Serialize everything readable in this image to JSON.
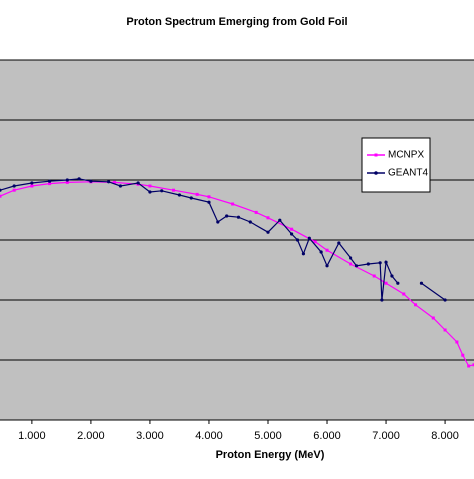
{
  "chart_data": {
    "type": "line",
    "title": "Proton Spectrum Emerging from Gold Foil",
    "x_label": "Proton Energy (MeV)",
    "xlim": [
      0.46,
      8.49
    ],
    "xticks": [
      {
        "value": 1,
        "label": "1.000"
      },
      {
        "value": 2,
        "label": "2.000"
      },
      {
        "value": 3,
        "label": "3.000"
      },
      {
        "value": 4,
        "label": "4.000"
      },
      {
        "value": 5,
        "label": "5.000"
      },
      {
        "value": 6,
        "label": "6.000"
      },
      {
        "value": 7,
        "label": "7.000"
      },
      {
        "value": 8,
        "label": "8.000"
      }
    ],
    "ylim": [
      0,
      6
    ],
    "yticks": [
      0,
      1,
      2,
      3,
      4,
      5,
      6
    ],
    "ytick_labels": false,
    "grid": true,
    "legend": "upper right",
    "series": [
      {
        "name": "MCNPX",
        "color": "#ff00ff",
        "x": [
          0.46,
          0.7,
          1.0,
          1.3,
          1.6,
          2.0,
          2.4,
          2.8,
          3.0,
          3.4,
          3.8,
          4.0,
          4.4,
          4.8,
          5.0,
          5.4,
          5.8,
          6.0,
          6.4,
          6.8,
          7.0,
          7.3,
          7.5,
          7.8,
          8.0,
          8.2,
          8.3,
          8.4,
          8.49
        ],
        "values": [
          3.73,
          3.83,
          3.9,
          3.94,
          3.96,
          3.97,
          3.96,
          3.93,
          3.9,
          3.83,
          3.76,
          3.72,
          3.6,
          3.46,
          3.37,
          3.18,
          2.97,
          2.83,
          2.6,
          2.4,
          2.28,
          2.1,
          1.92,
          1.7,
          1.5,
          1.3,
          1.08,
          0.9,
          0.92
        ]
      },
      {
        "name": "GEANT4",
        "color": "#000066",
        "x": [
          0.46,
          0.7,
          1.0,
          1.3,
          1.6,
          1.8,
          2.0,
          2.3,
          2.5,
          2.8,
          3.0,
          3.2,
          3.5,
          3.7,
          4.0,
          4.15,
          4.3,
          4.5,
          4.7,
          5.0,
          5.2,
          5.4,
          5.5,
          5.6,
          5.7,
          5.9,
          6.0,
          6.2,
          6.4,
          6.5,
          6.7,
          6.9,
          6.93,
          7.0,
          7.1,
          7.2,
          7.4,
          7.6,
          8.0
        ],
        "values": [
          3.83,
          3.9,
          3.95,
          3.98,
          4.0,
          4.02,
          3.98,
          3.97,
          3.9,
          3.95,
          3.8,
          3.82,
          3.75,
          3.7,
          3.63,
          3.3,
          3.4,
          3.38,
          3.3,
          3.13,
          3.33,
          3.1,
          3.0,
          2.77,
          3.03,
          2.8,
          2.57,
          2.95,
          2.7,
          2.57,
          2.6,
          2.62,
          2.0,
          2.63,
          2.4,
          2.28,
          null,
          2.28,
          2.0
        ]
      }
    ]
  }
}
